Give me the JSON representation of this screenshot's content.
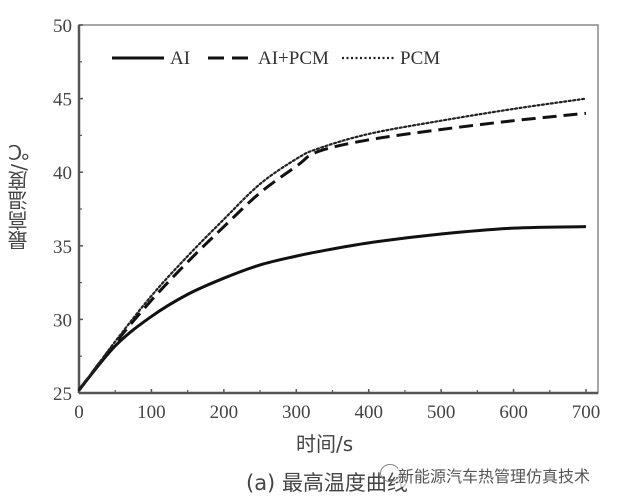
{
  "chart_data": {
    "type": "line",
    "title": "(a) 最高温度曲线",
    "xlabel": "时间/s",
    "ylabel": "最高温度/℃",
    "xlim": [
      0,
      700
    ],
    "ylim": [
      25,
      50
    ],
    "xticks": [
      0,
      100,
      200,
      300,
      400,
      500,
      600,
      700
    ],
    "yticks": [
      25,
      30,
      35,
      40,
      45,
      50
    ],
    "grid": false,
    "legend_position": "top-left-inside",
    "x": [
      0,
      50,
      100,
      150,
      200,
      250,
      300,
      330,
      400,
      500,
      600,
      700
    ],
    "series": [
      {
        "name": "AI",
        "style": "solid",
        "values": [
          25.2,
          28.2,
          30.2,
          31.7,
          32.8,
          33.7,
          34.3,
          34.6,
          35.2,
          35.8,
          36.2,
          36.3
        ]
      },
      {
        "name": "AI+PCM",
        "style": "dashed",
        "values": [
          25.2,
          28.4,
          31.3,
          33.9,
          36.3,
          38.6,
          40.4,
          41.4,
          42.2,
          42.9,
          43.5,
          44.0
        ]
      },
      {
        "name": "PCM",
        "style": "dotted",
        "values": [
          25.2,
          28.5,
          31.6,
          34.3,
          36.8,
          39.2,
          40.9,
          41.6,
          42.6,
          43.5,
          44.3,
          45.0
        ]
      }
    ]
  },
  "legend": {
    "items": [
      "AI",
      "AI+PCM",
      "PCM"
    ]
  },
  "axes": {
    "x_ticks": [
      "0",
      "100",
      "200",
      "300",
      "400",
      "500",
      "600",
      "700"
    ],
    "y_ticks": [
      "25",
      "30",
      "35",
      "40",
      "45",
      "50"
    ],
    "xlabel": "时间/s",
    "ylabel": "最高温度/℃"
  },
  "caption": "(a) 最高温度曲线",
  "watermark": "新能源汽车热管理仿真技术"
}
